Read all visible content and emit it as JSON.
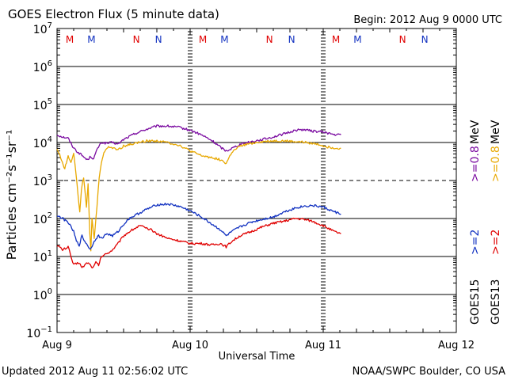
{
  "header": {
    "title": "GOES Electron Flux (5 minute data)",
    "begin": "Begin: 2012 Aug 9 0000 UTC"
  },
  "footer": {
    "updated": "Updated 2012 Aug 11 02:56:02 UTC",
    "credit": "NOAA/SWPC Boulder, CO USA"
  },
  "axes": {
    "ylabel": "Particles cm⁻²s⁻¹sr⁻¹",
    "xlabel": "Universal Time"
  },
  "colors": {
    "goes15_high": "#7a0aa0",
    "goes13_high": "#e8a800",
    "goes15_low": "#1030c0",
    "goes13_low": "#e00000"
  },
  "legend": {
    "sat_goes15": "GOES15",
    "sat_goes13": "GOES13",
    "label_ge2_a": ">=2",
    "label_ge2_b": ">=2",
    "label_ge08_a": ">=0.8",
    "label_ge08_b": ">=0.8",
    "unit_a": "MeV",
    "unit_b": "MeV"
  },
  "chart_data": {
    "type": "line",
    "title": "GOES Electron Flux (5 minute data)",
    "xlabel": "Universal Time",
    "ylabel": "Particles cm-2 s-1 sr-1",
    "y_scale": "log",
    "ylim": [
      0.1,
      10000000
    ],
    "xlim_hours": [
      0,
      72
    ],
    "y_ticks": [
      {
        "exp": "-1",
        "value": 0.1
      },
      {
        "exp": "0",
        "value": 1
      },
      {
        "exp": "1",
        "value": 10
      },
      {
        "exp": "2",
        "value": 100
      },
      {
        "exp": "3",
        "value": 1000
      },
      {
        "exp": "4",
        "value": 10000
      },
      {
        "exp": "5",
        "value": 100000
      },
      {
        "exp": "6",
        "value": 1000000
      },
      {
        "exp": "7",
        "value": 10000000
      }
    ],
    "x_ticks": [
      {
        "label": "Aug 9",
        "hour": 0
      },
      {
        "label": "Aug 10",
        "hour": 24
      },
      {
        "label": "Aug 11",
        "hour": 48
      },
      {
        "label": "Aug 12",
        "hour": 72
      }
    ],
    "alert_threshold": 1000,
    "markers": [
      {
        "label": "M",
        "hour": 2.3,
        "color": "#e00000"
      },
      {
        "label": "M",
        "hour": 6.2,
        "color": "#1030c0"
      },
      {
        "label": "N",
        "hour": 14.3,
        "color": "#e00000"
      },
      {
        "label": "N",
        "hour": 18.3,
        "color": "#1030c0"
      },
      {
        "label": "M",
        "hour": 26.3,
        "color": "#e00000"
      },
      {
        "label": "M",
        "hour": 30.2,
        "color": "#1030c0"
      },
      {
        "label": "N",
        "hour": 38.3,
        "color": "#e00000"
      },
      {
        "label": "N",
        "hour": 42.3,
        "color": "#1030c0"
      },
      {
        "label": "M",
        "hour": 50.3,
        "color": "#e00000"
      },
      {
        "label": "M",
        "hour": 54.2,
        "color": "#1030c0"
      },
      {
        "label": "N",
        "hour": 62.3,
        "color": "#e00000"
      },
      {
        "label": "N",
        "hour": 66.3,
        "color": "#1030c0"
      }
    ],
    "series": [
      {
        "name": "GOES15 >=0.8 MeV",
        "color": "#7a0aa0",
        "points": [
          [
            0,
            16000
          ],
          [
            1,
            14000
          ],
          [
            2,
            13000
          ],
          [
            2.8,
            8000
          ],
          [
            3.5,
            6000
          ],
          [
            4.2,
            5000
          ],
          [
            4.8,
            4200
          ],
          [
            5.4,
            3500
          ],
          [
            6.1,
            4300
          ],
          [
            6.6,
            3700
          ],
          [
            7.3,
            7000
          ],
          [
            8,
            10000
          ],
          [
            9,
            9500
          ],
          [
            10,
            10000
          ],
          [
            11,
            9000
          ],
          [
            12,
            12000
          ],
          [
            14,
            17000
          ],
          [
            16,
            22000
          ],
          [
            18,
            27000
          ],
          [
            20,
            27000
          ],
          [
            22,
            25000
          ],
          [
            24,
            21000
          ],
          [
            26,
            16000
          ],
          [
            28,
            11000
          ],
          [
            29.5,
            7500
          ],
          [
            30.5,
            6000
          ],
          [
            31.5,
            7000
          ],
          [
            33,
            9000
          ],
          [
            35,
            10500
          ],
          [
            37,
            12000
          ],
          [
            39,
            14000
          ],
          [
            41,
            17000
          ],
          [
            43,
            21000
          ],
          [
            44.5,
            22000
          ],
          [
            46,
            20000
          ],
          [
            48,
            19000
          ],
          [
            50,
            16000
          ],
          [
            51.2,
            16000
          ]
        ]
      },
      {
        "name": "GOES13 >=0.8 MeV",
        "color": "#e8a800",
        "points": [
          [
            0,
            7000
          ],
          [
            0.8,
            3500
          ],
          [
            1.4,
            2000
          ],
          [
            2,
            4500
          ],
          [
            2.5,
            3000
          ],
          [
            3,
            5500
          ],
          [
            3.4,
            1500
          ],
          [
            3.8,
            400
          ],
          [
            4.1,
            150
          ],
          [
            4.4,
            600
          ],
          [
            4.8,
            1200
          ],
          [
            5.3,
            200
          ],
          [
            5.6,
            800
          ],
          [
            5.9,
            40
          ],
          [
            6.1,
            15
          ],
          [
            6.3,
            100
          ],
          [
            6.7,
            30
          ],
          [
            7.2,
            200
          ],
          [
            7.6,
            1200
          ],
          [
            8,
            3000
          ],
          [
            8.6,
            6000
          ],
          [
            9.3,
            8000
          ],
          [
            10,
            7000
          ],
          [
            11,
            6500
          ],
          [
            12,
            8000
          ],
          [
            14,
            9500
          ],
          [
            16,
            11000
          ],
          [
            18,
            11000
          ],
          [
            20,
            10000
          ],
          [
            22,
            8500
          ],
          [
            24,
            6000
          ],
          [
            26,
            4500
          ],
          [
            28,
            4000
          ],
          [
            29.5,
            3500
          ],
          [
            30.5,
            2800
          ],
          [
            31.5,
            5500
          ],
          [
            33,
            8000
          ],
          [
            35,
            9500
          ],
          [
            37,
            10500
          ],
          [
            39,
            11000
          ],
          [
            41,
            11000
          ],
          [
            43,
            10500
          ],
          [
            45,
            10000
          ],
          [
            47,
            9000
          ],
          [
            49,
            7500
          ],
          [
            51.2,
            7000
          ]
        ]
      },
      {
        "name": "GOES15 >=2 MeV",
        "color": "#1030c0",
        "points": [
          [
            0,
            120
          ],
          [
            1,
            100
          ],
          [
            2,
            80
          ],
          [
            3,
            45
          ],
          [
            3.5,
            25
          ],
          [
            4,
            20
          ],
          [
            4.5,
            35
          ],
          [
            5,
            25
          ],
          [
            5.5,
            20
          ],
          [
            6,
            15
          ],
          [
            6.5,
            22
          ],
          [
            7,
            30
          ],
          [
            7.5,
            35
          ],
          [
            8,
            30
          ],
          [
            9,
            40
          ],
          [
            10,
            35
          ],
          [
            11,
            45
          ],
          [
            12,
            70
          ],
          [
            13,
            100
          ],
          [
            14,
            120
          ],
          [
            16,
            170
          ],
          [
            18,
            230
          ],
          [
            20,
            240
          ],
          [
            22,
            210
          ],
          [
            24,
            160
          ],
          [
            26,
            110
          ],
          [
            28,
            70
          ],
          [
            29.5,
            50
          ],
          [
            30.5,
            35
          ],
          [
            31.5,
            45
          ],
          [
            33,
            60
          ],
          [
            35,
            80
          ],
          [
            37,
            95
          ],
          [
            39,
            110
          ],
          [
            41,
            150
          ],
          [
            43,
            190
          ],
          [
            44.5,
            210
          ],
          [
            46,
            220
          ],
          [
            48,
            200
          ],
          [
            49.5,
            160
          ],
          [
            51.2,
            130
          ]
        ]
      },
      {
        "name": "GOES13 >=2 MeV",
        "color": "#e00000",
        "points": [
          [
            0,
            20
          ],
          [
            1,
            15
          ],
          [
            2,
            18
          ],
          [
            2.5,
            10
          ],
          [
            3,
            6
          ],
          [
            4,
            7
          ],
          [
            4.5,
            5
          ],
          [
            5,
            6
          ],
          [
            5.5,
            7
          ],
          [
            6,
            6
          ],
          [
            6.5,
            5
          ],
          [
            7,
            7
          ],
          [
            7.5,
            6
          ],
          [
            8,
            10
          ],
          [
            9,
            12
          ],
          [
            10,
            15
          ],
          [
            11,
            22
          ],
          [
            12,
            35
          ],
          [
            13,
            45
          ],
          [
            14,
            55
          ],
          [
            15,
            65
          ],
          [
            16,
            55
          ],
          [
            17,
            50
          ],
          [
            18,
            40
          ],
          [
            20,
            30
          ],
          [
            22,
            26
          ],
          [
            24,
            22
          ],
          [
            26,
            22
          ],
          [
            28,
            20
          ],
          [
            29.5,
            22
          ],
          [
            30.5,
            18
          ],
          [
            31.5,
            25
          ],
          [
            33,
            35
          ],
          [
            35,
            45
          ],
          [
            37,
            60
          ],
          [
            39,
            75
          ],
          [
            41,
            85
          ],
          [
            43,
            100
          ],
          [
            44.5,
            95
          ],
          [
            46,
            85
          ],
          [
            48,
            65
          ],
          [
            50,
            45
          ],
          [
            51.2,
            40
          ]
        ]
      }
    ]
  }
}
